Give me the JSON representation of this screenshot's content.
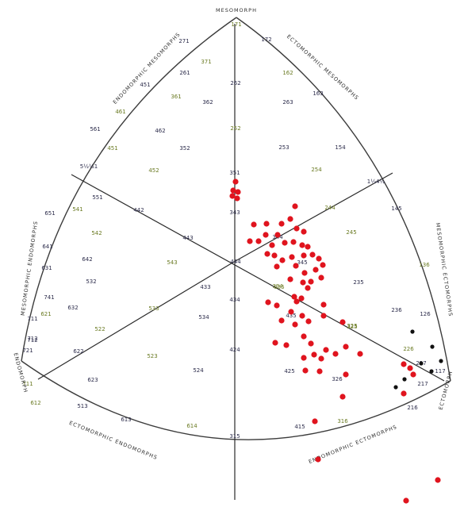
{
  "diagram": {
    "region_labels": {
      "mesomorph": "MESOMORPH",
      "endomorphic_mesomorphs": "ENDOMORPHIC   MESOMORPHS",
      "ectomorphic_mesomorphs": "ECTOMORPHIC   MESOMORPHS",
      "mesomorphic_endomorphs": "MESOMORPHIC   ENDOMORPHS",
      "mesomorphic_ectomorphs": "MESOMORPHIC   ECTOMORPHS",
      "endomorph": "ENDOMORPH",
      "ectomorph": "ECTOMORPH",
      "ectomorphic_endomorphs": "ECTOMORPHIC   ENDOMORPHS",
      "endomorphic_ectomorphs": "ENDOMORPHIC   ECTOMORPHS"
    },
    "colors": {
      "outline": "#3c3c3c",
      "axis": "#2a2a2a",
      "label_dark": "#2b2b4a",
      "label_olive": "#6a7a22",
      "red_points": "#e0141e",
      "black_points": "#111111"
    },
    "somatotype_codes": [
      "171",
      "271",
      "172",
      "371",
      "261",
      "451",
      "361",
      "362",
      "262",
      "162",
      "263",
      "163",
      "461",
      "561",
      "462",
      "252",
      "253",
      "154",
      "451",
      "352",
      "5½½1",
      "452",
      "551",
      "351",
      "254",
      "1½4½",
      "651",
      "541",
      "442",
      "343",
      "244",
      "145",
      "641",
      "542",
      "443",
      "344",
      "245",
      "631",
      "642",
      "543",
      "444",
      "345",
      "136",
      "532",
      "434",
      "335",
      "235",
      "741",
      "621",
      "632",
      "433",
      "334",
      "236",
      "711",
      "533",
      "534",
      "435",
      "325",
      "126",
      "712",
      "522",
      "721",
      "622",
      "523",
      "424",
      "425",
      "226",
      "227",
      "117",
      "711",
      "623",
      "524",
      "325",
      "326",
      "217",
      "612",
      "513",
      "613",
      "614",
      "315",
      "415",
      "316",
      "216",
      "712"
    ],
    "red_point_count": 73,
    "black_point_count": 7
  }
}
